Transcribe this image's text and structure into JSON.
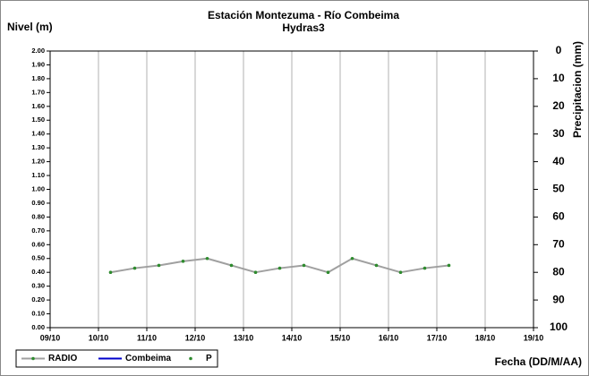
{
  "chart_data": {
    "type": "line",
    "title": "Estación Montezuma - Río Combeima",
    "subtitle": "Hydras3",
    "ylabel": "Nivel (m)",
    "y2label": "Precipitacion (mm)",
    "xlabel": "Fecha (DD/M/AA)",
    "x": [
      1.25,
      1.75,
      2.25,
      2.75,
      3.25,
      3.75,
      4.25,
      4.75,
      5.25,
      5.75,
      6.25,
      6.75,
      7.25,
      7.75,
      8.25
    ],
    "series": [
      {
        "name": "RADIO",
        "color": "#a0a0a0",
        "marker_color": "#2e8b2e",
        "values": [
          0.4,
          0.43,
          0.45,
          0.48,
          0.5,
          0.45,
          0.4,
          0.43,
          0.45,
          0.4,
          0.5,
          0.45,
          0.4,
          0.43,
          0.45
        ]
      },
      {
        "name": "Combeima",
        "color": "#0000cc",
        "values": [
          null,
          null,
          null,
          null,
          null,
          null,
          null,
          null,
          null,
          null,
          null,
          null,
          null,
          null,
          null
        ]
      },
      {
        "name": "P",
        "color": "#2e8b2e",
        "axis": "y2",
        "line": false,
        "values": [
          null,
          null,
          null,
          null,
          null,
          null,
          null,
          null,
          null,
          null,
          null,
          null,
          null,
          null,
          null
        ]
      }
    ],
    "xlim": [
      0,
      10
    ],
    "xticks": [
      {
        "value": 0,
        "label": "09/10"
      },
      {
        "value": 1,
        "label": "10/10"
      },
      {
        "value": 2,
        "label": "11/10"
      },
      {
        "value": 3,
        "label": "12/10"
      },
      {
        "value": 4,
        "label": "13/10"
      },
      {
        "value": 5,
        "label": "14/10"
      },
      {
        "value": 6,
        "label": "15/10"
      },
      {
        "value": 7,
        "label": "16/10"
      },
      {
        "value": 8,
        "label": "17/10"
      },
      {
        "value": 9,
        "label": "18/10"
      },
      {
        "value": 10,
        "label": "19/10"
      }
    ],
    "ylim": [
      0,
      2
    ],
    "yticks": [
      {
        "value": 0,
        "label": "0.00"
      },
      {
        "value": 0.1,
        "label": "0.10"
      },
      {
        "value": 0.2,
        "label": "0.20"
      },
      {
        "value": 0.3,
        "label": "0.30"
      },
      {
        "value": 0.4,
        "label": "0.40"
      },
      {
        "value": 0.5,
        "label": "0.50"
      },
      {
        "value": 0.6,
        "label": "0.60"
      },
      {
        "value": 0.7,
        "label": "0.70"
      },
      {
        "value": 0.8,
        "label": "0.80"
      },
      {
        "value": 0.9,
        "label": "0.90"
      },
      {
        "value": 1,
        "label": "1.00"
      },
      {
        "value": 1.1,
        "label": "1.10"
      },
      {
        "value": 1.2,
        "label": "1.20"
      },
      {
        "value": 1.3,
        "label": "1.30"
      },
      {
        "value": 1.4,
        "label": "1.40"
      },
      {
        "value": 1.5,
        "label": "1.50"
      },
      {
        "value": 1.6,
        "label": "1.60"
      },
      {
        "value": 1.7,
        "label": "1.70"
      },
      {
        "value": 1.8,
        "label": "1.80"
      },
      {
        "value": 1.9,
        "label": "1.90"
      },
      {
        "value": 2,
        "label": "2.00"
      }
    ],
    "y2lim": [
      100,
      0
    ],
    "y2ticks": [
      0,
      10,
      20,
      30,
      40,
      50,
      60,
      70,
      80,
      90,
      100
    ],
    "grid": "x"
  }
}
